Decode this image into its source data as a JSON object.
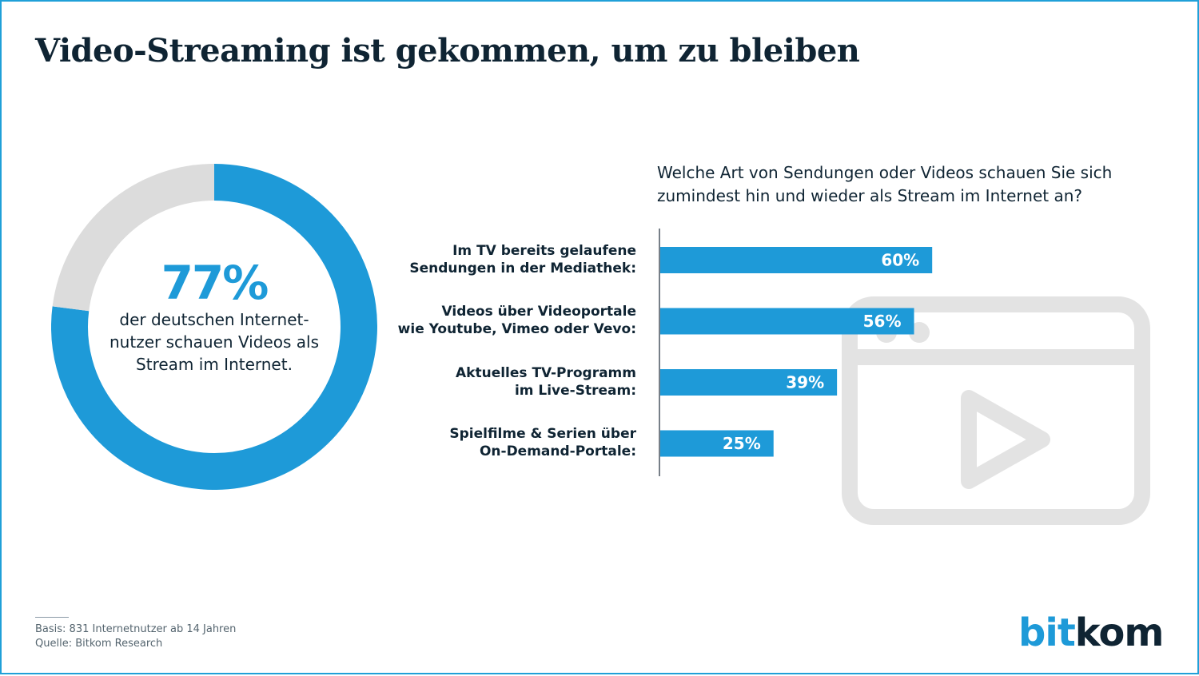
{
  "title": "Video-Streaming ist gekommen, um zu bleiben",
  "donut": {
    "percent_label": "77%",
    "value": 77,
    "caption_lines": [
      "der deutschen Internet-",
      "nutzer schauen Videos als",
      "Stream im Internet."
    ],
    "color_main": "#1e9ad8",
    "color_rest": "#dcdcdc"
  },
  "question_lines": [
    "Welche Art von Sendungen oder Videos schauen Sie sich",
    "zumindest hin und wieder als Stream im Internet an?"
  ],
  "chart_data": [
    {
      "type": "pie",
      "values": [
        77,
        23
      ],
      "labels": [
        "77%",
        ""
      ],
      "title": "",
      "colors": [
        "#1e9ad8",
        "#dcdcdc"
      ]
    },
    {
      "type": "bar",
      "orientation": "horizontal",
      "categories": [
        "Im TV bereits gelaufene Sendungen in der Mediathek:",
        "Videos über Videoportale wie Youtube, Vimeo oder Vevo:",
        "Aktuelles TV-Programm im Live-Stream:",
        "Spielfilme & Serien über On-Demand-Portale:"
      ],
      "category_lines": [
        [
          "Im TV bereits gelaufene",
          "Sendungen in der Mediathek:"
        ],
        [
          "Videos über Videoportale",
          "wie Youtube, Vimeo oder Vevo:"
        ],
        [
          "Aktuelles TV-Programm",
          "im Live-Stream:"
        ],
        [
          "Spielfilme & Serien über",
          "On-Demand-Portale:"
        ]
      ],
      "values": [
        60,
        56,
        39,
        25
      ],
      "value_labels": [
        "60%",
        "56%",
        "39%",
        "25%"
      ],
      "xlim": [
        0,
        100
      ],
      "unit": "%",
      "bar_color": "#1e9ad8",
      "grid": false
    }
  ],
  "footer": {
    "basis": "Basis: 831 Internetnutzer ab 14 Jahren",
    "source": "Quelle: Bitkom Research"
  },
  "logo": {
    "part1": "bit",
    "part2": "kom"
  },
  "decorative_icon": "video-player-icon"
}
